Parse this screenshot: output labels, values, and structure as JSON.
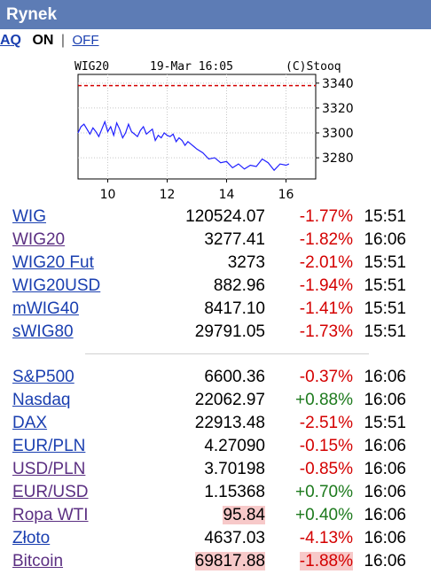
{
  "header": {
    "title": "Rynek"
  },
  "aq": {
    "label": "AQ",
    "on": "ON",
    "sep": "|",
    "off": "OFF"
  },
  "chart_data": {
    "type": "line",
    "header_left": "WIG20",
    "header_mid": "19-Mar 16:05",
    "header_right": "(C)Stooq",
    "x_ticks": [
      "10",
      "12",
      "14",
      "16"
    ],
    "y_ticks": [
      "3340",
      "3320",
      "3300",
      "3280"
    ],
    "ylim": [
      3263,
      3347
    ],
    "xlim": [
      9.0,
      17.0
    ],
    "reference_line": 3338,
    "series_color": "#1f1fff",
    "reference_color": "#d40000",
    "x": [
      9.0,
      9.1,
      9.2,
      9.3,
      9.4,
      9.5,
      9.6,
      9.7,
      9.8,
      9.9,
      10.0,
      10.1,
      10.2,
      10.3,
      10.4,
      10.5,
      10.6,
      10.7,
      10.8,
      10.9,
      11.0,
      11.1,
      11.2,
      11.3,
      11.4,
      11.5,
      11.6,
      11.7,
      11.8,
      11.9,
      12.0,
      12.1,
      12.2,
      12.3,
      12.4,
      12.5,
      12.6,
      12.7,
      12.8,
      12.9,
      13.0,
      13.2,
      13.4,
      13.6,
      13.8,
      14.0,
      14.2,
      14.4,
      14.6,
      14.8,
      15.0,
      15.2,
      15.4,
      15.6,
      15.8,
      16.0,
      16.1
    ],
    "y": [
      3300,
      3305,
      3307,
      3303,
      3299,
      3304,
      3301,
      3297,
      3303,
      3309,
      3301,
      3305,
      3298,
      3308,
      3303,
      3296,
      3300,
      3307,
      3301,
      3299,
      3297,
      3302,
      3305,
      3299,
      3301,
      3303,
      3294,
      3298,
      3296,
      3300,
      3298,
      3297,
      3299,
      3293,
      3296,
      3294,
      3290,
      3293,
      3291,
      3289,
      3287,
      3284,
      3279,
      3280,
      3276,
      3277,
      3272,
      3275,
      3271,
      3274,
      3273,
      3279,
      3276,
      3270,
      3275,
      3274,
      3275
    ]
  },
  "groups": [
    {
      "rows": [
        {
          "name": "WIG",
          "value": "120524.07",
          "change": "-1.77%",
          "time": "15:51"
        },
        {
          "name": "WIG20",
          "value": "3277.41",
          "change": "-1.82%",
          "time": "16:06"
        },
        {
          "name": "WIG20 Fut",
          "value": "3273",
          "change": "-2.01%",
          "time": "15:51"
        },
        {
          "name": "WIG20USD",
          "value": "882.96",
          "change": "-1.94%",
          "time": "15:51"
        },
        {
          "name": "mWIG40",
          "value": "8417.10",
          "change": "-1.41%",
          "time": "15:51"
        },
        {
          "name": "sWIG80",
          "value": "29791.05",
          "change": "-1.73%",
          "time": "15:51"
        }
      ]
    },
    {
      "rows": [
        {
          "name": "S&P500",
          "value": "6600.36",
          "change": "-0.37%",
          "time": "16:06"
        },
        {
          "name": "Nasdaq",
          "value": "22062.97",
          "change": "+0.88%",
          "time": "16:06"
        },
        {
          "name": "DAX",
          "value": "22913.48",
          "change": "-2.51%",
          "time": "15:51"
        },
        {
          "name": "EUR/PLN",
          "value": "4.27090",
          "change": "-0.15%",
          "time": "16:06"
        },
        {
          "name": "USD/PLN",
          "value": "3.70198",
          "change": "-0.85%",
          "time": "16:06"
        },
        {
          "name": "EUR/USD",
          "value": "1.15368",
          "change": "+0.70%",
          "time": "16:06"
        },
        {
          "name": "Ropa WTI",
          "value": "95.84",
          "change": "+0.40%",
          "time": "16:06"
        },
        {
          "name": "Złoto",
          "value": "4637.03",
          "change": "-4.13%",
          "time": "16:06"
        },
        {
          "name": "Bitcoin",
          "value": "69817.88",
          "change": "-1.88%",
          "time": "16:06"
        }
      ]
    }
  ]
}
